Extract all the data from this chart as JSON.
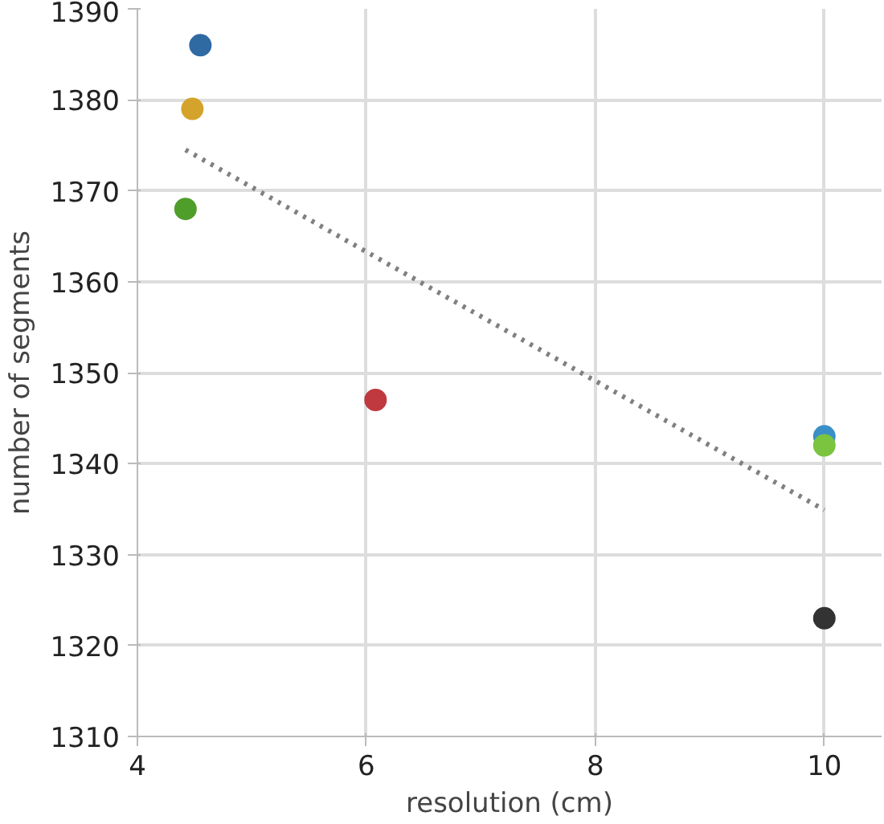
{
  "chart_data": {
    "type": "scatter",
    "xlabel": "resolution (cm)",
    "ylabel": "number of segments",
    "xlim": [
      4,
      10.5
    ],
    "ylim": [
      1310,
      1390
    ],
    "xticks": [
      4,
      6,
      8,
      10
    ],
    "yticks": [
      1310,
      1320,
      1330,
      1340,
      1350,
      1360,
      1370,
      1380,
      1390
    ],
    "grid": true,
    "series": [
      {
        "marker": "circle",
        "x": [
          4.55,
          4.48,
          4.42,
          6.08,
          10,
          10,
          10
        ],
        "values": [
          1386,
          1379,
          1368,
          1347,
          1343,
          1342,
          1323
        ],
        "colors": [
          "#2f6aa3",
          "#d4a32b",
          "#4f9e2a",
          "#c0393f",
          "#3a8fc7",
          "#7bc43f",
          "#333333"
        ]
      },
      {
        "type": "line",
        "x": [
          4.42,
          10
        ],
        "values": [
          1374.5,
          1334.9
        ],
        "color": "#808080",
        "line_style": "dotted",
        "marker": "none"
      }
    ]
  }
}
